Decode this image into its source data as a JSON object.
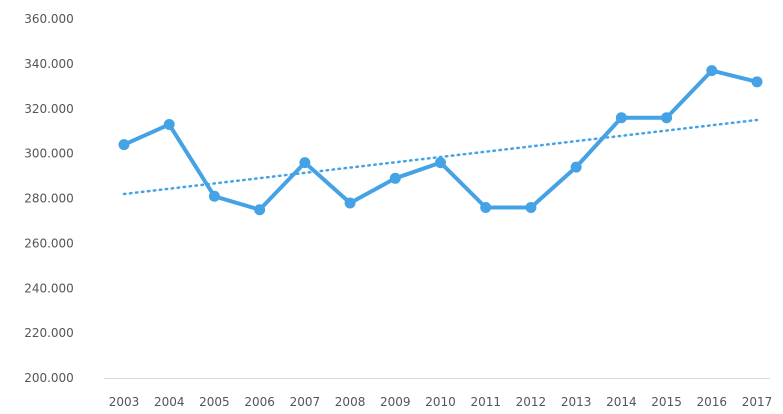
{
  "chart_data": {
    "type": "line",
    "title": "",
    "xlabel": "",
    "ylabel": "",
    "x": [
      "2003",
      "2004",
      "2005",
      "2006",
      "2007",
      "2008",
      "2009",
      "2010",
      "2011",
      "2012",
      "2013",
      "2014",
      "2015",
      "2016",
      "2017"
    ],
    "y_ticks": [
      "200.000",
      "220.000",
      "240.000",
      "260.000",
      "280.000",
      "300.000",
      "320.000",
      "340.000",
      "360.000"
    ],
    "ylim": [
      200000,
      360000
    ],
    "series": [
      {
        "values": [
          304000,
          313000,
          281000,
          275000,
          296000,
          278000,
          289000,
          296000,
          276000,
          276000,
          294000,
          316000,
          316000,
          337000,
          332000
        ],
        "color": "#45a3e5"
      }
    ],
    "trendline": {
      "style": "dotted",
      "color": "#45a3e5",
      "start": 282000,
      "end": 315000
    },
    "grid": false,
    "legend": "none"
  }
}
